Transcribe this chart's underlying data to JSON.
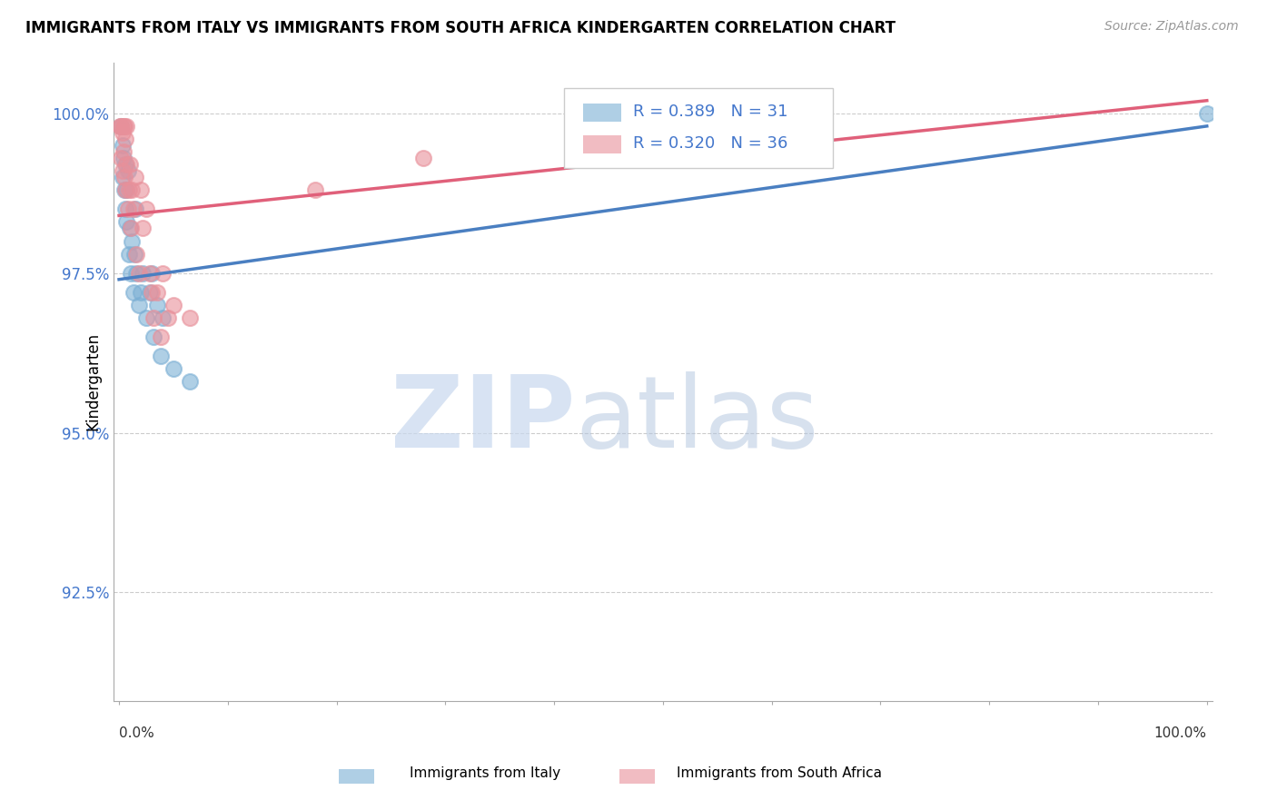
{
  "title": "IMMIGRANTS FROM ITALY VS IMMIGRANTS FROM SOUTH AFRICA KINDERGARTEN CORRELATION CHART",
  "source": "Source: ZipAtlas.com",
  "ylabel": "Kindergarten",
  "y_tick_labels": [
    "92.5%",
    "95.0%",
    "97.5%",
    "100.0%"
  ],
  "y_tick_values": [
    0.925,
    0.95,
    0.975,
    1.0
  ],
  "xlim": [
    -0.005,
    1.005
  ],
  "ylim": [
    0.908,
    1.008
  ],
  "italy_color": "#7bafd4",
  "south_africa_color": "#e8909a",
  "italy_line_color": "#4a7fc1",
  "sa_line_color": "#e0607a",
  "italy_R": 0.389,
  "italy_N": 31,
  "sa_R": 0.32,
  "sa_N": 36,
  "legend_label_italy": "Immigrants from Italy",
  "legend_label_sa": "Immigrants from South Africa",
  "italy_line_x0": 0.0,
  "italy_line_y0": 0.974,
  "italy_line_x1": 1.0,
  "italy_line_y1": 0.998,
  "sa_line_x0": 0.0,
  "sa_line_y0": 0.984,
  "sa_line_x1": 1.0,
  "sa_line_y1": 1.002,
  "italy_scatter_x": [
    0.002,
    0.003,
    0.003,
    0.004,
    0.005,
    0.006,
    0.006,
    0.007,
    0.007,
    0.008,
    0.009,
    0.01,
    0.011,
    0.012,
    0.013,
    0.014,
    0.015,
    0.016,
    0.018,
    0.02,
    0.022,
    0.025,
    0.028,
    0.03,
    0.032,
    0.035,
    0.038,
    0.04,
    0.05,
    0.065,
    1.0
  ],
  "italy_scatter_y": [
    0.998,
    0.995,
    0.99,
    0.993,
    0.988,
    0.992,
    0.985,
    0.988,
    0.983,
    0.991,
    0.978,
    0.982,
    0.975,
    0.98,
    0.972,
    0.978,
    0.985,
    0.975,
    0.97,
    0.972,
    0.975,
    0.968,
    0.972,
    0.975,
    0.965,
    0.97,
    0.962,
    0.968,
    0.96,
    0.958,
    1.0
  ],
  "sa_scatter_x": [
    0.001,
    0.002,
    0.002,
    0.003,
    0.003,
    0.004,
    0.004,
    0.005,
    0.005,
    0.006,
    0.006,
    0.007,
    0.007,
    0.008,
    0.009,
    0.01,
    0.011,
    0.012,
    0.013,
    0.015,
    0.016,
    0.018,
    0.02,
    0.022,
    0.025,
    0.028,
    0.03,
    0.032,
    0.035,
    0.038,
    0.04,
    0.045,
    0.05,
    0.065,
    0.18,
    0.28
  ],
  "sa_scatter_y": [
    0.998,
    0.998,
    0.993,
    0.997,
    0.991,
    0.998,
    0.994,
    0.998,
    0.99,
    0.996,
    0.988,
    0.998,
    0.992,
    0.985,
    0.988,
    0.992,
    0.982,
    0.988,
    0.985,
    0.99,
    0.978,
    0.975,
    0.988,
    0.982,
    0.985,
    0.975,
    0.972,
    0.968,
    0.972,
    0.965,
    0.975,
    0.968,
    0.97,
    0.968,
    0.988,
    0.993
  ]
}
